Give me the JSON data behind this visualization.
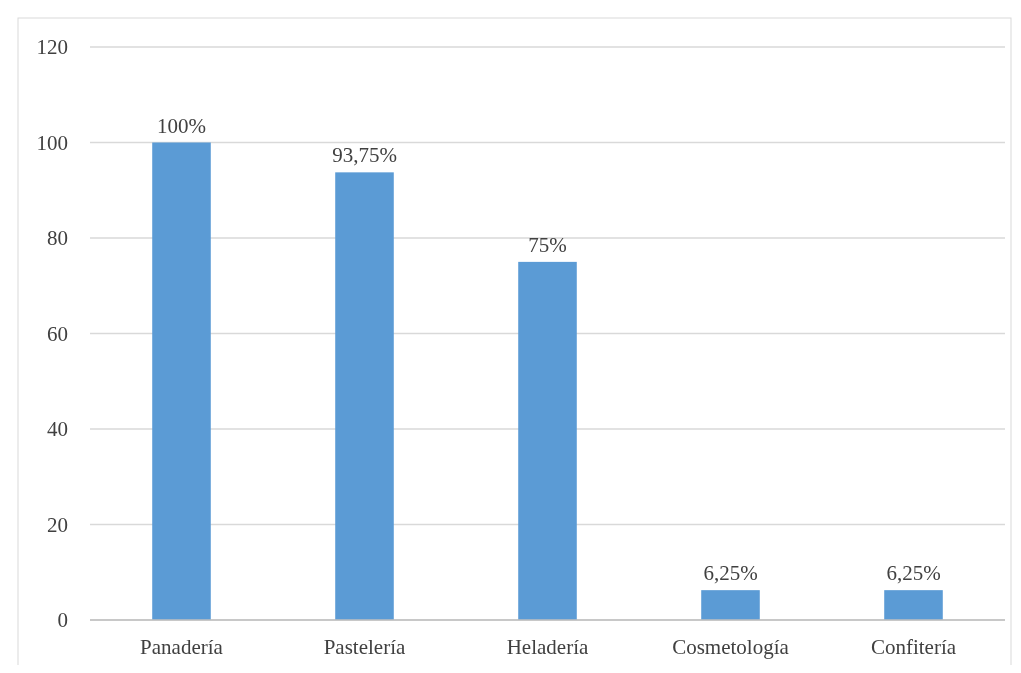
{
  "chart_data": {
    "type": "bar",
    "categories": [
      "Panadería",
      "Pastelería",
      "Heladería",
      "Cosmetología",
      "Confitería"
    ],
    "values": [
      100,
      93.75,
      75,
      6.25,
      6.25
    ],
    "value_labels": [
      "100%",
      "93,75%",
      "75%",
      "6,25%",
      "6,25%"
    ],
    "color": "#5b9bd5",
    "ylim": [
      0,
      120
    ],
    "yticks": [
      0,
      20,
      40,
      60,
      80,
      100,
      120
    ],
    "grid": "y"
  }
}
